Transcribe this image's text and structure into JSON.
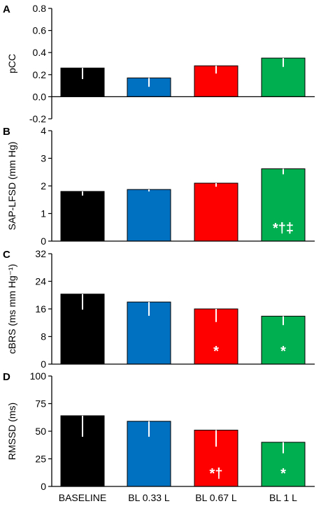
{
  "colors": {
    "baseline": "#000000",
    "bl_033": "#0070c0",
    "bl_067": "#ff0000",
    "bl_1": "#00b050",
    "axis": "#000000",
    "error_bar": "#ffffff",
    "sig_mark": "#ffffff"
  },
  "chart_data": [
    {
      "type": "bar",
      "panel": "A",
      "ylabel": "pCC",
      "categories": [
        "BASELINE",
        "BL 0.33 L",
        "BL 0.67 L",
        "BL 1 L"
      ],
      "values": [
        0.26,
        0.17,
        0.28,
        0.35
      ],
      "errors": [
        0.1,
        0.08,
        0.07,
        0.08
      ],
      "ylim": [
        -0.2,
        0.8
      ],
      "yticks": [
        -0.2,
        0,
        0.2,
        0.4,
        0.6,
        0.8
      ],
      "ytick_labels": [
        "-0.2",
        "0.0",
        "0.2",
        "0.4",
        "0.6",
        "0.8"
      ],
      "annotations": [
        "",
        "",
        "",
        ""
      ],
      "show_category_labels": false
    },
    {
      "type": "bar",
      "panel": "B",
      "ylabel": "SAP-LFSD (mm Hg)",
      "categories": [
        "BASELINE",
        "BL 0.33 L",
        "BL 0.67 L",
        "BL 1 L"
      ],
      "values": [
        1.8,
        1.87,
        2.1,
        2.62
      ],
      "errors": [
        0.15,
        0.07,
        0.13,
        0.2
      ],
      "ylim": [
        0,
        4
      ],
      "yticks": [
        0,
        1,
        2,
        3,
        4
      ],
      "ytick_labels": [
        "0",
        "1",
        "2",
        "3",
        "4"
      ],
      "annotations": [
        "",
        "",
        "",
        "*†‡"
      ],
      "show_category_labels": false
    },
    {
      "type": "bar",
      "panel": "C",
      "ylabel": "cBRS (ms mm Hg⁻¹)",
      "categories": [
        "BASELINE",
        "BL 0.33 L",
        "BL 0.67 L",
        "BL 1 L"
      ],
      "values": [
        20.3,
        18,
        16,
        13.9
      ],
      "errors": [
        4.5,
        4,
        3.8,
        2.6
      ],
      "ylim": [
        0,
        32
      ],
      "yticks": [
        0,
        8,
        16,
        24,
        32
      ],
      "ytick_labels": [
        "0",
        "8",
        "16",
        "24",
        "32"
      ],
      "annotations": [
        "",
        "",
        "*",
        "*"
      ],
      "show_category_labels": false
    },
    {
      "type": "bar",
      "panel": "D",
      "ylabel": "RMSSD (ms)",
      "categories": [
        "BASELINE",
        "BL 0.33 L",
        "BL 0.67 L",
        "BL 1 L"
      ],
      "values": [
        64,
        59,
        51,
        40
      ],
      "errors": [
        19,
        14,
        15,
        10
      ],
      "ylim": [
        0,
        100
      ],
      "yticks": [
        0,
        25,
        50,
        75,
        100
      ],
      "ytick_labels": [
        "0",
        "25",
        "50",
        "75",
        "100"
      ],
      "annotations": [
        "",
        "",
        "*†",
        "*"
      ],
      "show_category_labels": true
    }
  ]
}
